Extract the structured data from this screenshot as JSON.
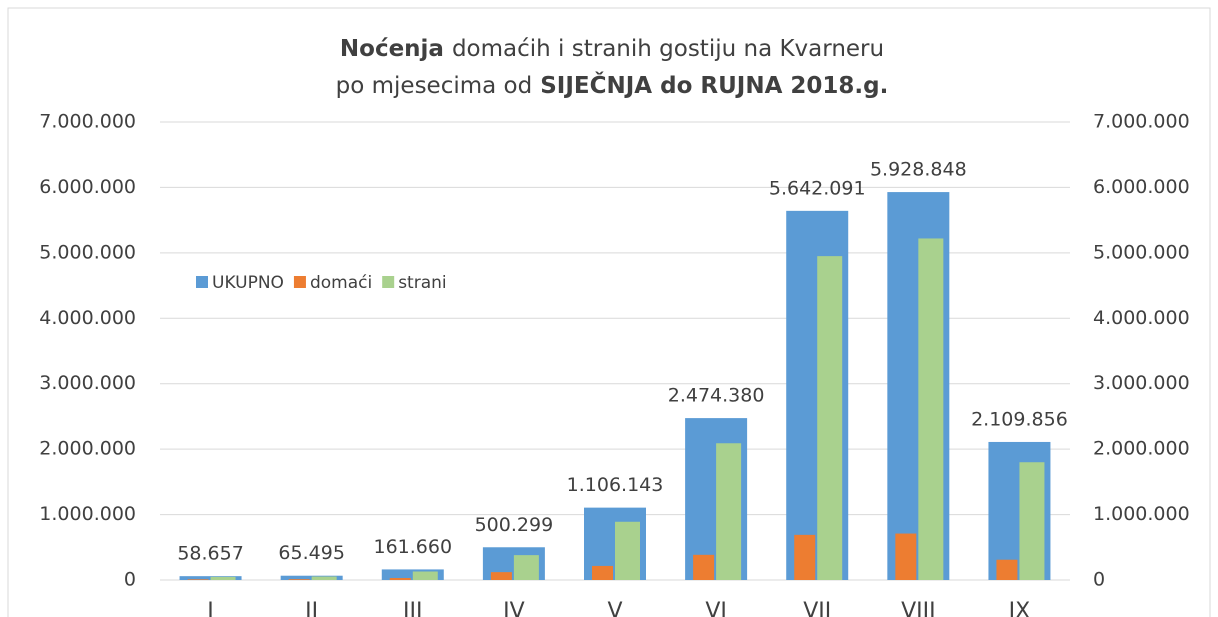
{
  "chart_data": {
    "type": "bar",
    "title": [
      "Noćenja",
      "domaćih i stranih gostiju na Kvarneru",
      "po mjesecima od",
      "SIJEČNJA do RUJNA 2018.g."
    ],
    "categories": [
      "I",
      "II",
      "III",
      "IV",
      "V",
      "VI",
      "VII",
      "VIII",
      "IX"
    ],
    "series": [
      {
        "name": "UKUPNO",
        "color": "#5b9bd5",
        "values": [
          58657,
          65495,
          161660,
          500299,
          1106143,
          2474380,
          5642091,
          5928848,
          2109856
        ],
        "value_labels": [
          "58.657",
          "65.495",
          "161.660",
          "500.299",
          "1.106.143",
          "2.474.380",
          "5.642.091",
          "5.928.848",
          "2.109.856"
        ]
      },
      {
        "name": "domaći",
        "color": "#ed7d31",
        "values": [
          10000,
          12000,
          30000,
          120000,
          215000,
          385000,
          690000,
          710000,
          310000
        ]
      },
      {
        "name": "strani",
        "color": "#a9d18e",
        "values": [
          48000,
          53000,
          130000,
          380000,
          890000,
          2090000,
          4950000,
          5220000,
          1800000
        ]
      }
    ],
    "ylim": [
      0,
      7000000
    ],
    "yticks": [
      0,
      {
        "value": 1000000,
        "label": "1.000.000"
      },
      {
        "value": 2000000,
        "label": "2.000.000"
      },
      {
        "value": 3000000,
        "label": "3.000.000"
      },
      {
        "value": 4000000,
        "label": "4.000.000"
      },
      {
        "value": 5000000,
        "label": "5.000.000"
      },
      {
        "value": 6000000,
        "label": "6.000.000"
      },
      {
        "value": 7000000,
        "label": "7.000.000"
      }
    ],
    "y2lim": [
      0,
      7000000
    ],
    "y2ticks": [
      0,
      {
        "value": 1000000,
        "label": "1.000.000"
      },
      {
        "value": 2000000,
        "label": "2.000.000"
      },
      {
        "value": 3000000,
        "label": "3.000.000"
      },
      {
        "value": 4000000,
        "label": "4.000.000"
      },
      {
        "value": 5000000,
        "label": "5.000.000"
      },
      {
        "value": 6000000,
        "label": "6.000.000"
      },
      {
        "value": 7000000,
        "label": "7.000.000"
      }
    ],
    "grid": true,
    "legend": "left"
  }
}
